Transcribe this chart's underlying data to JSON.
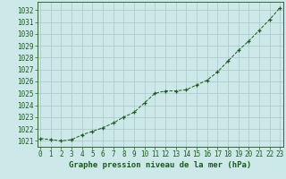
{
  "x": [
    0,
    1,
    2,
    3,
    4,
    5,
    6,
    7,
    8,
    9,
    10,
    11,
    12,
    13,
    14,
    15,
    16,
    17,
    18,
    19,
    20,
    21,
    22,
    23
  ],
  "y": [
    1021.2,
    1021.1,
    1021.0,
    1021.1,
    1021.5,
    1021.8,
    1022.1,
    1022.5,
    1023.0,
    1023.4,
    1024.2,
    1025.0,
    1025.2,
    1025.2,
    1025.3,
    1025.7,
    1026.1,
    1026.8,
    1027.7,
    1028.6,
    1029.4,
    1030.3,
    1031.2,
    1032.2
  ],
  "line_color": "#1a5c1a",
  "marker": "+",
  "bg_color": "#cce8e8",
  "grid_color": "#aac8c8",
  "xlabel": "Graphe pression niveau de la mer (hPa)",
  "xlabel_color": "#1a5c1a",
  "tick_color": "#1a5c1a",
  "ylim": [
    1020.5,
    1032.7
  ],
  "yticks": [
    1021,
    1022,
    1023,
    1024,
    1025,
    1026,
    1027,
    1028,
    1029,
    1030,
    1031,
    1032
  ],
  "xticks": [
    0,
    1,
    2,
    3,
    4,
    5,
    6,
    7,
    8,
    9,
    10,
    11,
    12,
    13,
    14,
    15,
    16,
    17,
    18,
    19,
    20,
    21,
    22,
    23
  ],
  "font_size_label": 6.5,
  "font_size_tick": 5.5
}
